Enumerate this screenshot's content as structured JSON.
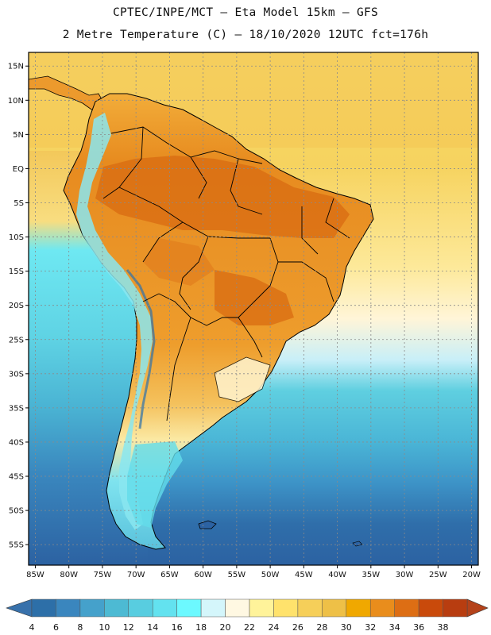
{
  "header": {
    "line1": "CPTEC/INPE/MCT –  Eta Model 15km – GFS",
    "line2": "2 Metre Temperature (C) – 18/10/2020 12UTC fct=176h"
  },
  "map": {
    "lat_labels": [
      "15N",
      "10N",
      "5N",
      "EQ",
      "5S",
      "10S",
      "15S",
      "20S",
      "25S",
      "30S",
      "35S",
      "40S",
      "45S",
      "50S",
      "55S"
    ],
    "lat_values": [
      15,
      10,
      5,
      0,
      -5,
      -10,
      -15,
      -20,
      -25,
      -30,
      -35,
      -40,
      -45,
      -50,
      -55
    ],
    "lon_labels": [
      "85W",
      "80W",
      "75W",
      "70W",
      "65W",
      "60W",
      "55W",
      "50W",
      "45W",
      "40W",
      "35W",
      "30W",
      "25W",
      "20W"
    ],
    "lon_values": [
      -85,
      -80,
      -75,
      -70,
      -65,
      -60,
      -55,
      -50,
      -45,
      -40,
      -35,
      -30,
      -25,
      -20
    ],
    "lat_range": [
      -58,
      17
    ],
    "lon_range": [
      -86,
      -19
    ]
  },
  "legend": {
    "values": [
      "4",
      "6",
      "8",
      "10",
      "12",
      "14",
      "16",
      "18",
      "20",
      "22",
      "24",
      "26",
      "28",
      "30",
      "32",
      "34",
      "36",
      "38"
    ],
    "colors": [
      "#2d6fa8",
      "#3a86be",
      "#45a1cb",
      "#4dbad3",
      "#58cde0",
      "#63e2ef",
      "#6cf9ff",
      "#d4f6fb",
      "#fff8e2",
      "#fff39a",
      "#ffe26c",
      "#f6cf59",
      "#eec047",
      "#f0a800",
      "#e98d1c",
      "#dd6e14",
      "#c94a0b",
      "#b83d10"
    ],
    "low_color": "#3871ab",
    "high_color": "#b4421a"
  }
}
